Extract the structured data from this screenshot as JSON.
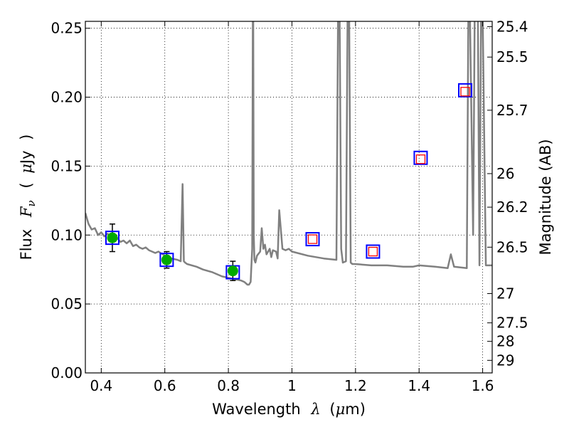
{
  "chart_data": {
    "type": "line",
    "title": "",
    "xlabel": {
      "main": "Wavelength",
      "symbol": "λ",
      "unit_open": "(",
      "unit_mu": "μ",
      "unit_rest": "m)"
    },
    "ylabel": {
      "main": "Flux",
      "symbol": "F",
      "subscript": "ν",
      "unit_open": "(",
      "unit_mu": "μ",
      "unit_rest": "Jy",
      "unit_close": ")"
    },
    "y2label": "Magnitude (AB)",
    "xlim": [
      0.35,
      1.63
    ],
    "ylim": [
      0.0,
      0.255
    ],
    "grid": true,
    "x_ticks": [
      {
        "value": 0.4,
        "label": "0.4"
      },
      {
        "value": 0.6,
        "label": "0.6"
      },
      {
        "value": 0.8,
        "label": "0.8"
      },
      {
        "value": 1.0,
        "label": "1"
      },
      {
        "value": 1.2,
        "label": "1.2"
      },
      {
        "value": 1.4,
        "label": "1.4"
      },
      {
        "value": 1.6,
        "label": "1.6"
      }
    ],
    "y_ticks": [
      {
        "value": 0.0,
        "label": "0.00"
      },
      {
        "value": 0.05,
        "label": "0.05"
      },
      {
        "value": 0.1,
        "label": "0.10"
      },
      {
        "value": 0.15,
        "label": "0.15"
      },
      {
        "value": 0.2,
        "label": "0.20"
      },
      {
        "value": 0.25,
        "label": "0.25"
      }
    ],
    "y2_ticks": [
      {
        "value": 25.4,
        "label": "25.4"
      },
      {
        "value": 25.5,
        "label": "25.5"
      },
      {
        "value": 25.7,
        "label": "25.7"
      },
      {
        "value": 26.0,
        "label": "26"
      },
      {
        "value": 26.2,
        "label": "26.2"
      },
      {
        "value": 26.5,
        "label": "26.5"
      },
      {
        "value": 27.0,
        "label": "27"
      },
      {
        "value": 27.5,
        "label": "27.5"
      },
      {
        "value": 28.0,
        "label": "28"
      },
      {
        "value": 29.0,
        "label": "29"
      }
    ],
    "series": [
      {
        "kind": "model-spectrum",
        "color": "#808080",
        "x": [
          0.35,
          0.36,
          0.37,
          0.38,
          0.39,
          0.4,
          0.41,
          0.42,
          0.43,
          0.44,
          0.45,
          0.46,
          0.47,
          0.48,
          0.49,
          0.5,
          0.51,
          0.52,
          0.53,
          0.54,
          0.55,
          0.56,
          0.57,
          0.58,
          0.6,
          0.62,
          0.64,
          0.65,
          0.656,
          0.66,
          0.664,
          0.67,
          0.7,
          0.72,
          0.75,
          0.78,
          0.8,
          0.82,
          0.84,
          0.85,
          0.86,
          0.865,
          0.87,
          0.875,
          0.877,
          0.878,
          0.88,
          0.882,
          0.885,
          0.89,
          0.9,
          0.905,
          0.91,
          0.915,
          0.92,
          0.93,
          0.935,
          0.94,
          0.95,
          0.955,
          0.96,
          0.97,
          0.98,
          0.99,
          1.0,
          1.05,
          1.1,
          1.14,
          1.145,
          1.15,
          1.155,
          1.16,
          1.17,
          1.175,
          1.18,
          1.185,
          1.19,
          1.2,
          1.25,
          1.3,
          1.35,
          1.38,
          1.4,
          1.45,
          1.49,
          1.5,
          1.51,
          1.55,
          1.555,
          1.56,
          1.565,
          1.57,
          1.575,
          1.58,
          1.585,
          1.59,
          1.595,
          1.6,
          1.61,
          1.63
        ],
        "y": [
          0.116,
          0.108,
          0.104,
          0.105,
          0.1,
          0.102,
          0.099,
          0.101,
          0.098,
          0.097,
          0.098,
          0.095,
          0.096,
          0.094,
          0.096,
          0.092,
          0.093,
          0.091,
          0.09,
          0.091,
          0.089,
          0.088,
          0.087,
          0.088,
          0.085,
          0.083,
          0.082,
          0.081,
          0.137,
          0.081,
          0.08,
          0.079,
          0.077,
          0.075,
          0.073,
          0.07,
          0.069,
          0.068,
          0.067,
          0.066,
          0.064,
          0.064,
          0.066,
          0.09,
          0.26,
          0.26,
          0.1,
          0.082,
          0.08,
          0.085,
          0.088,
          0.105,
          0.09,
          0.093,
          0.086,
          0.09,
          0.084,
          0.089,
          0.088,
          0.083,
          0.118,
          0.09,
          0.089,
          0.09,
          0.088,
          0.085,
          0.083,
          0.082,
          0.26,
          0.26,
          0.09,
          0.08,
          0.081,
          0.26,
          0.26,
          0.08,
          0.079,
          0.079,
          0.078,
          0.078,
          0.077,
          0.077,
          0.078,
          0.077,
          0.076,
          0.086,
          0.077,
          0.076,
          0.26,
          0.26,
          0.18,
          0.1,
          0.26,
          0.26,
          0.26,
          0.078,
          0.26,
          0.26,
          0.078,
          0.078
        ]
      },
      {
        "kind": "observed-photometry",
        "marker": "green-circle",
        "color": "#00aa00",
        "x": [
          0.435,
          0.606,
          0.814
        ],
        "y": [
          0.098,
          0.082,
          0.074
        ],
        "yerr": [
          0.01,
          0.006,
          0.007
        ]
      },
      {
        "kind": "model-photometry",
        "marker": "blue-square",
        "color": "#0000ff",
        "x": [
          0.435,
          0.606,
          0.814,
          1.065,
          1.255,
          1.405,
          1.545
        ],
        "y": [
          0.098,
          0.082,
          0.073,
          0.097,
          0.088,
          0.156,
          0.205
        ]
      },
      {
        "kind": "upper-limits",
        "marker": "red-open-square",
        "color": "#ff0000",
        "x": [
          1.065,
          1.255,
          1.405,
          1.545
        ],
        "y": [
          0.097,
          0.088,
          0.155,
          0.204
        ]
      }
    ]
  }
}
